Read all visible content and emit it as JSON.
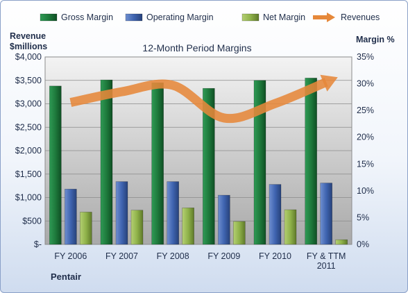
{
  "chart_data": {
    "type": "bar",
    "title": "12-Month Period Margins",
    "categories": [
      "FY 2006",
      "FY 2007",
      "FY 2008",
      "FY 2009",
      "FY 2010",
      "FY & TTM 2011"
    ],
    "y_left_label_line1": "Revenue",
    "y_left_label_line2": "$millions",
    "y_right_label": "Margin %",
    "y_left_range": [
      0,
      4000
    ],
    "y_right_range": [
      0,
      35
    ],
    "y_left_ticks": [
      "$-",
      "$500",
      "$1,000",
      "$1,500",
      "$2,000",
      "$2,500",
      "$3,000",
      "$3,500",
      "$4,000"
    ],
    "y_right_ticks": [
      "0%",
      "5%",
      "10%",
      "15%",
      "20%",
      "25%",
      "30%",
      "35%"
    ],
    "grid": "horizontal",
    "legend_position": "top",
    "series": [
      {
        "name": "Gross Margin",
        "axis": "left",
        "kind": "bar",
        "color": "#1e7a3c",
        "values": [
          3380,
          3510,
          3450,
          3330,
          3500,
          3550
        ]
      },
      {
        "name": "Operating Margin",
        "axis": "left",
        "kind": "bar",
        "color": "#3f64b0",
        "values": [
          1180,
          1340,
          1340,
          1050,
          1280,
          1310
        ]
      },
      {
        "name": "Net Margin",
        "axis": "left",
        "kind": "bar",
        "color": "#8fb24a",
        "values": [
          690,
          730,
          780,
          490,
          740,
          100
        ]
      },
      {
        "name": "Revenues",
        "axis": "right",
        "kind": "line",
        "color": "#e6883a",
        "values": [
          26.5,
          28.5,
          29.7,
          23.6,
          26.3,
          30.3
        ]
      }
    ],
    "footer_label": "Pentair"
  }
}
